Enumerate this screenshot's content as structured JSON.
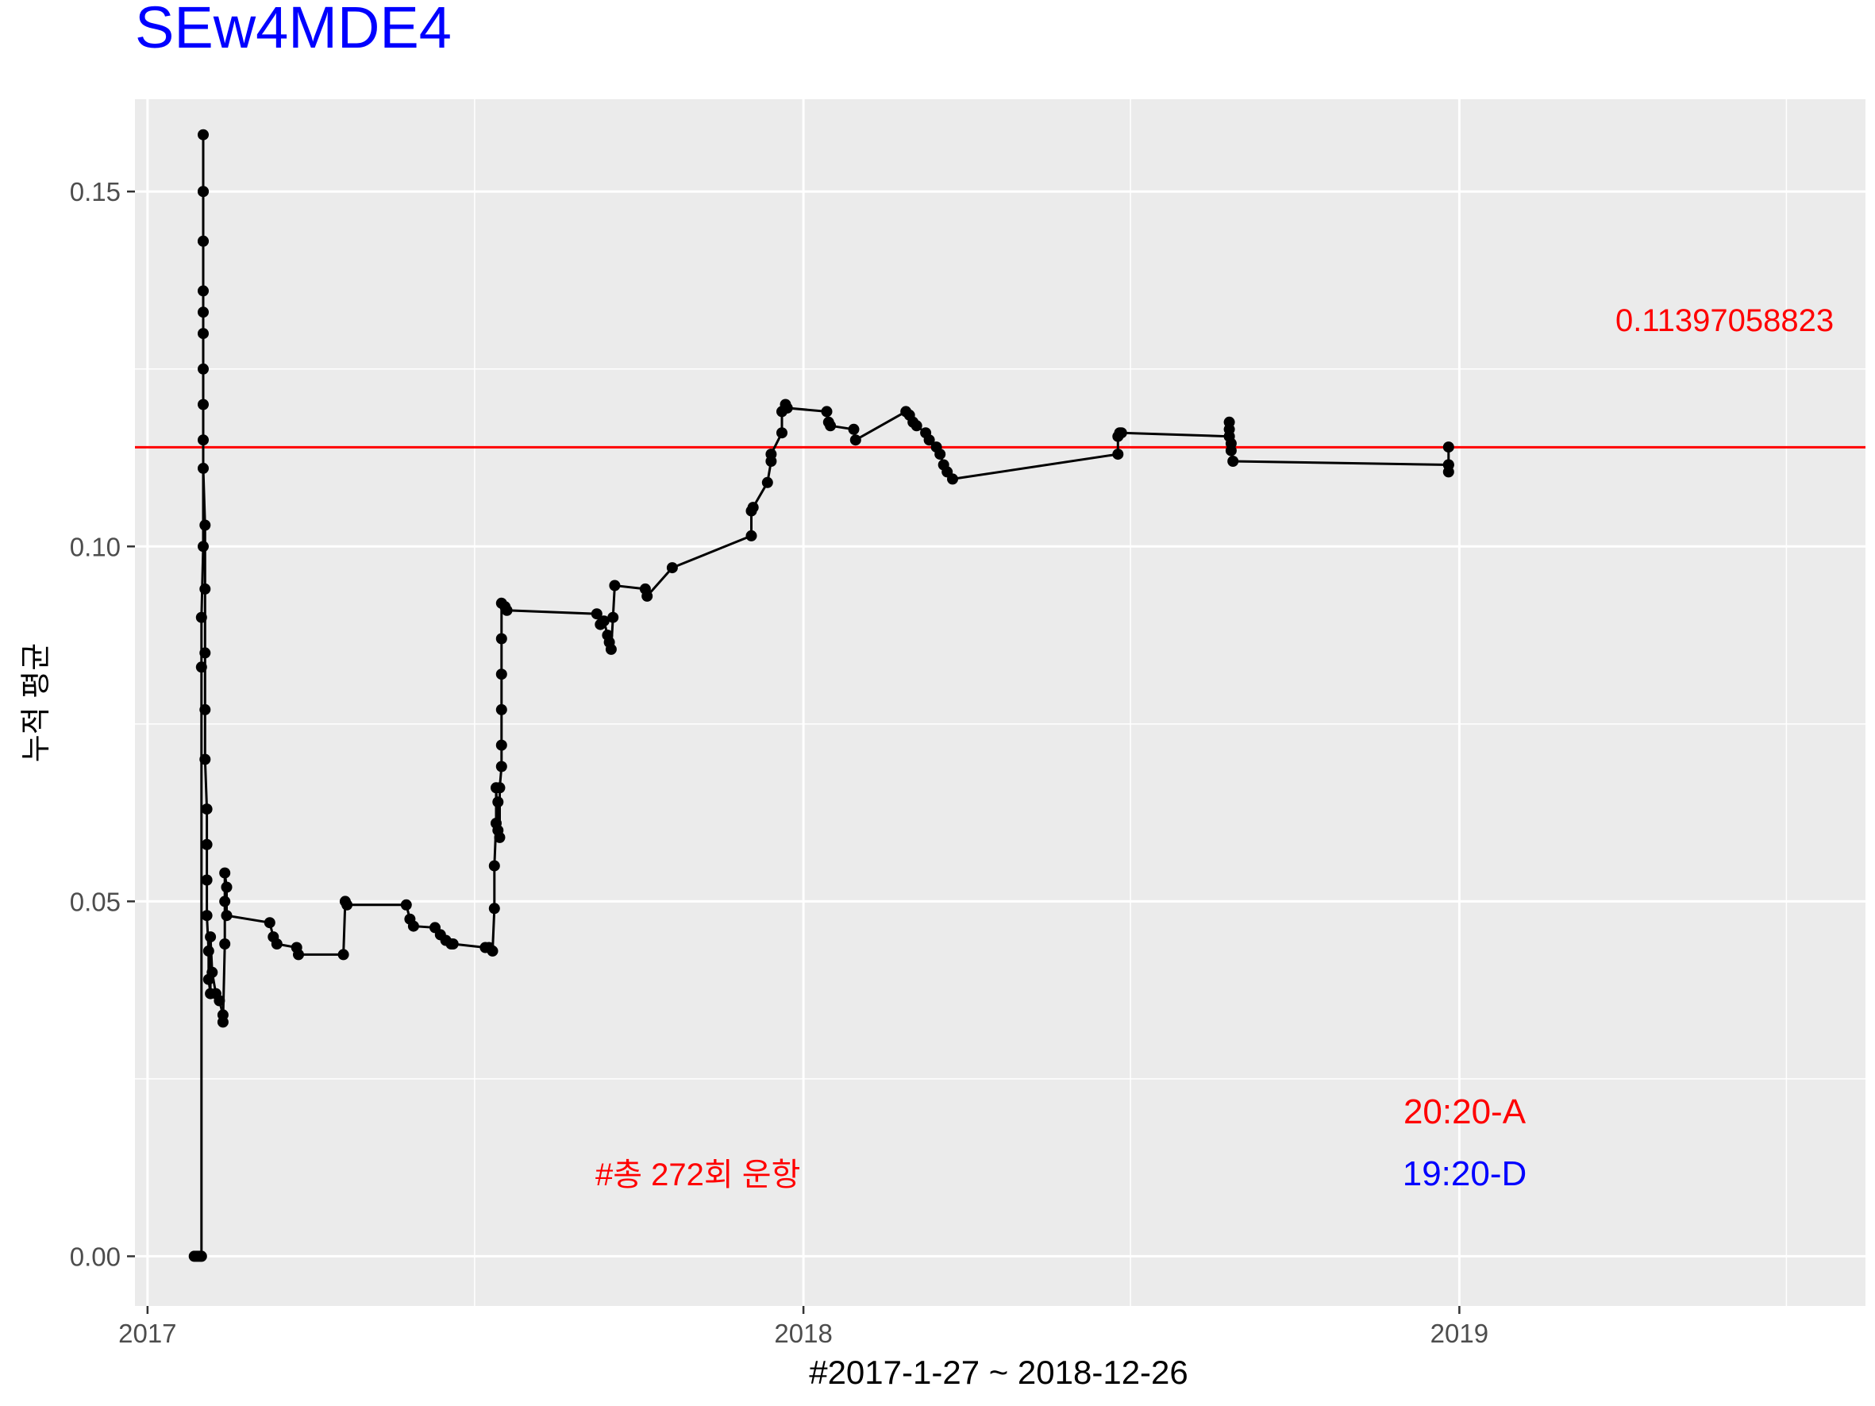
{
  "chart_data": {
    "type": "line",
    "title": "SEw4MDE4",
    "xlabel": "#2017-1-27 ~ 2018-12-26",
    "ylabel": "누적 평균",
    "x_ticks": [
      "2017",
      "2018",
      "2019"
    ],
    "y_ticks": [
      "0.00",
      "0.05",
      "0.10",
      "0.15"
    ],
    "xlim": [
      "2016-12-25",
      "2019-08-15"
    ],
    "ylim": [
      -0.007,
      0.163
    ],
    "grid": true,
    "reference_line": {
      "value": 0.1139705882,
      "label": "0.11397058823",
      "color": "#ff0000"
    },
    "annotations": {
      "total_runs": "#총 272회 운항",
      "arrival": "20:20-A",
      "departure": "19:20-D"
    },
    "colors": {
      "title": "#0000ff",
      "line": "#000000",
      "panel": "#ebebeb",
      "grid": "#ffffff",
      "ref": "#ff0000",
      "departure": "#0000ff"
    },
    "series": [
      {
        "points": [
          [
            "2017-01-27",
            0.0
          ],
          [
            "2017-01-28",
            0.0
          ],
          [
            "2017-01-29",
            0.0
          ],
          [
            "2017-01-30",
            0.0
          ],
          [
            "2017-01-31",
            0.0
          ],
          [
            "2017-01-31",
            0.083
          ],
          [
            "2017-01-31",
            0.09
          ],
          [
            "2017-02-01",
            0.1
          ],
          [
            "2017-02-01",
            0.115
          ],
          [
            "2017-02-01",
            0.125
          ],
          [
            "2017-02-01",
            0.133
          ],
          [
            "2017-02-01",
            0.143
          ],
          [
            "2017-02-01",
            0.15
          ],
          [
            "2017-02-01",
            0.158
          ],
          [
            "2017-02-01",
            0.15
          ],
          [
            "2017-02-01",
            0.143
          ],
          [
            "2017-02-01",
            0.136
          ],
          [
            "2017-02-01",
            0.13
          ],
          [
            "2017-02-01",
            0.12
          ],
          [
            "2017-02-01",
            0.111
          ],
          [
            "2017-02-02",
            0.103
          ],
          [
            "2017-02-02",
            0.094
          ],
          [
            "2017-02-02",
            0.085
          ],
          [
            "2017-02-02",
            0.077
          ],
          [
            "2017-02-02",
            0.07
          ],
          [
            "2017-02-03",
            0.063
          ],
          [
            "2017-02-03",
            0.058
          ],
          [
            "2017-02-03",
            0.053
          ],
          [
            "2017-02-03",
            0.048
          ],
          [
            "2017-02-04",
            0.043
          ],
          [
            "2017-02-04",
            0.039
          ],
          [
            "2017-02-05",
            0.037
          ],
          [
            "2017-02-05",
            0.045
          ],
          [
            "2017-02-06",
            0.04
          ],
          [
            "2017-02-08",
            0.037
          ],
          [
            "2017-02-10",
            0.036
          ],
          [
            "2017-02-12",
            0.034
          ],
          [
            "2017-02-12",
            0.033
          ],
          [
            "2017-02-13",
            0.044
          ],
          [
            "2017-02-13",
            0.05
          ],
          [
            "2017-02-13",
            0.054
          ],
          [
            "2017-02-14",
            0.052
          ],
          [
            "2017-02-14",
            0.048
          ],
          [
            "2017-03-10",
            0.047
          ],
          [
            "2017-03-12",
            0.045
          ],
          [
            "2017-03-14",
            0.044
          ],
          [
            "2017-03-25",
            0.0435
          ],
          [
            "2017-03-26",
            0.0425
          ],
          [
            "2017-04-20",
            0.0425
          ],
          [
            "2017-04-21",
            0.05
          ],
          [
            "2017-04-22",
            0.0495
          ],
          [
            "2017-05-25",
            0.0495
          ],
          [
            "2017-05-27",
            0.0475
          ],
          [
            "2017-05-29",
            0.0465
          ],
          [
            "2017-06-10",
            0.0463
          ],
          [
            "2017-06-13",
            0.0453
          ],
          [
            "2017-06-16",
            0.0445
          ],
          [
            "2017-06-19",
            0.044
          ],
          [
            "2017-06-20",
            0.044
          ],
          [
            "2017-07-08",
            0.0435
          ],
          [
            "2017-07-10",
            0.0435
          ],
          [
            "2017-07-12",
            0.043
          ],
          [
            "2017-07-13",
            0.049
          ],
          [
            "2017-07-13",
            0.055
          ],
          [
            "2017-07-14",
            0.061
          ],
          [
            "2017-07-14",
            0.066
          ],
          [
            "2017-07-15",
            0.06
          ],
          [
            "2017-07-15",
            0.064
          ],
          [
            "2017-07-16",
            0.059
          ],
          [
            "2017-07-16",
            0.066
          ],
          [
            "2017-07-17",
            0.069
          ],
          [
            "2017-07-17",
            0.072
          ],
          [
            "2017-07-17",
            0.077
          ],
          [
            "2017-07-17",
            0.082
          ],
          [
            "2017-07-17",
            0.087
          ],
          [
            "2017-07-17",
            0.092
          ],
          [
            "2017-07-19",
            0.0915
          ],
          [
            "2017-07-20",
            0.091
          ],
          [
            "2017-09-08",
            0.0905
          ],
          [
            "2017-09-10",
            0.089
          ],
          [
            "2017-09-12",
            0.0895
          ],
          [
            "2017-09-14",
            0.0875
          ],
          [
            "2017-09-15",
            0.0865
          ],
          [
            "2017-09-16",
            0.0855
          ],
          [
            "2017-09-17",
            0.09
          ],
          [
            "2017-09-18",
            0.0945
          ],
          [
            "2017-10-05",
            0.094
          ],
          [
            "2017-10-06",
            0.093
          ],
          [
            "2017-10-20",
            0.097
          ],
          [
            "2017-12-03",
            0.1015
          ],
          [
            "2017-12-03",
            0.105
          ],
          [
            "2017-12-04",
            0.1055
          ],
          [
            "2017-12-12",
            0.109
          ],
          [
            "2017-12-14",
            0.112
          ],
          [
            "2017-12-14",
            0.113
          ],
          [
            "2017-12-20",
            0.116
          ],
          [
            "2017-12-20",
            0.119
          ],
          [
            "2017-12-22",
            0.12
          ],
          [
            "2017-12-23",
            0.1195
          ],
          [
            "2018-01-14",
            0.119
          ],
          [
            "2018-01-15",
            0.1175
          ],
          [
            "2018-01-16",
            0.117
          ],
          [
            "2018-01-29",
            0.1165
          ],
          [
            "2018-01-30",
            0.115
          ],
          [
            "2018-02-27",
            0.119
          ],
          [
            "2018-03-01",
            0.1185
          ],
          [
            "2018-03-03",
            0.1175
          ],
          [
            "2018-03-05",
            0.117
          ],
          [
            "2018-03-10",
            0.116
          ],
          [
            "2018-03-12",
            0.115
          ],
          [
            "2018-03-16",
            0.114
          ],
          [
            "2018-03-18",
            0.113
          ],
          [
            "2018-03-20",
            0.1115
          ],
          [
            "2018-03-22",
            0.1105
          ],
          [
            "2018-03-25",
            0.1095
          ],
          [
            "2018-06-25",
            0.113
          ],
          [
            "2018-06-25",
            0.1155
          ],
          [
            "2018-06-26",
            0.116
          ],
          [
            "2018-06-27",
            0.116
          ],
          [
            "2018-08-26",
            0.1155
          ],
          [
            "2018-08-26",
            0.1175
          ],
          [
            "2018-08-26",
            0.1165
          ],
          [
            "2018-08-26",
            0.1155
          ],
          [
            "2018-08-27",
            0.1145
          ],
          [
            "2018-08-27",
            0.1135
          ],
          [
            "2018-08-28",
            0.112
          ],
          [
            "2018-12-26",
            0.1115
          ],
          [
            "2018-12-26",
            0.1105
          ],
          [
            "2018-12-26",
            0.1115
          ],
          [
            "2018-12-26",
            0.114
          ]
        ]
      }
    ]
  }
}
